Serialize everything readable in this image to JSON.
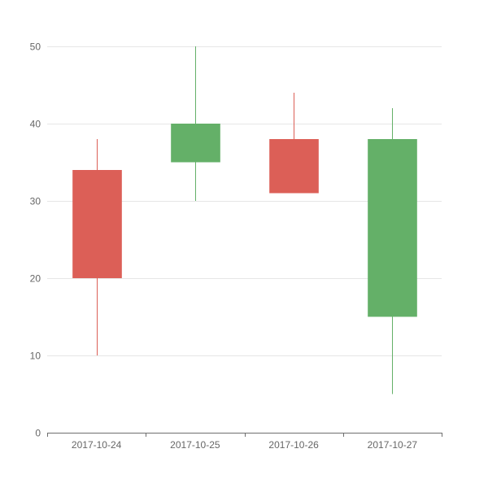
{
  "chart_data": {
    "type": "candlestick",
    "title": "",
    "xlabel": "",
    "ylabel": "",
    "categories": [
      "2017-10-24",
      "2017-10-25",
      "2017-10-26",
      "2017-10-27"
    ],
    "series": [
      {
        "name": "",
        "fields": [
          "open",
          "close",
          "low",
          "high"
        ],
        "values": [
          [
            34,
            20,
            10,
            38
          ],
          [
            35,
            40,
            30,
            50
          ],
          [
            38,
            31,
            31,
            44
          ],
          [
            15,
            38,
            5,
            42
          ]
        ]
      }
    ],
    "yticks": [
      0,
      10,
      20,
      30,
      40,
      50
    ],
    "ylim": [
      0,
      50
    ],
    "grid": true,
    "legend": null,
    "colors": {
      "up": "#64b068",
      "down": "#dc5f57",
      "grid": "#e6e6e6",
      "axis": "#6e6e6e",
      "label": "#666666"
    }
  }
}
